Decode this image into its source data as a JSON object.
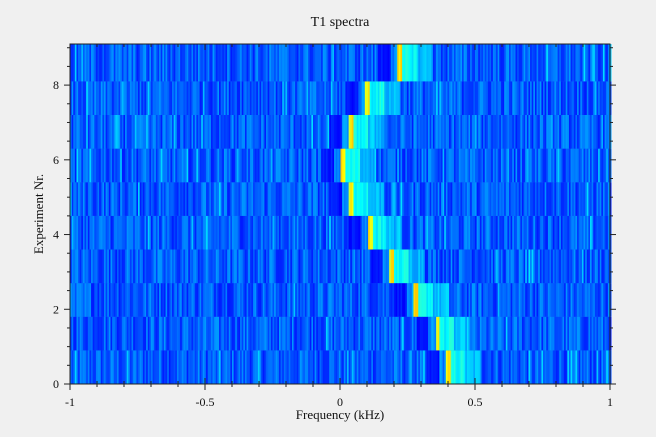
{
  "chart_data": {
    "type": "heatmap",
    "title": "T1 spectra",
    "xlabel": "Frequency (kHz)",
    "ylabel": "Experiment Nr.",
    "xlim": [
      -1,
      1
    ],
    "ylim": [
      0,
      9.1
    ],
    "x_ticks": [
      {
        "value": -1,
        "label": "-1"
      },
      {
        "value": -0.5,
        "label": "-0.5"
      },
      {
        "value": 0,
        "label": "0"
      },
      {
        "value": 0.5,
        "label": "0.5"
      },
      {
        "value": 1,
        "label": "1"
      }
    ],
    "y_ticks": [
      {
        "value": 0,
        "label": "0"
      },
      {
        "value": 2,
        "label": "2"
      },
      {
        "value": 4,
        "label": "4"
      },
      {
        "value": 6,
        "label": "6"
      },
      {
        "value": 8,
        "label": "8"
      }
    ],
    "colormap": "jet",
    "background_color": "#1e5ff0",
    "rows": [
      {
        "y_start": 0.0,
        "y_end": 0.9,
        "peak_frequency_khz": 0.4
      },
      {
        "y_start": 0.9,
        "y_end": 1.8,
        "peak_frequency_khz": 0.36
      },
      {
        "y_start": 1.8,
        "y_end": 2.7,
        "peak_frequency_khz": 0.28
      },
      {
        "y_start": 2.7,
        "y_end": 3.6,
        "peak_frequency_khz": 0.19
      },
      {
        "y_start": 3.6,
        "y_end": 4.5,
        "peak_frequency_khz": 0.11
      },
      {
        "y_start": 4.5,
        "y_end": 5.4,
        "peak_frequency_khz": 0.04
      },
      {
        "y_start": 5.4,
        "y_end": 6.3,
        "peak_frequency_khz": 0.01
      },
      {
        "y_start": 6.3,
        "y_end": 7.2,
        "peak_frequency_khz": 0.04
      },
      {
        "y_start": 7.2,
        "y_end": 8.1,
        "peak_frequency_khz": 0.1
      },
      {
        "y_start": 8.1,
        "y_end": 9.1,
        "peak_frequency_khz": 0.22
      }
    ]
  }
}
